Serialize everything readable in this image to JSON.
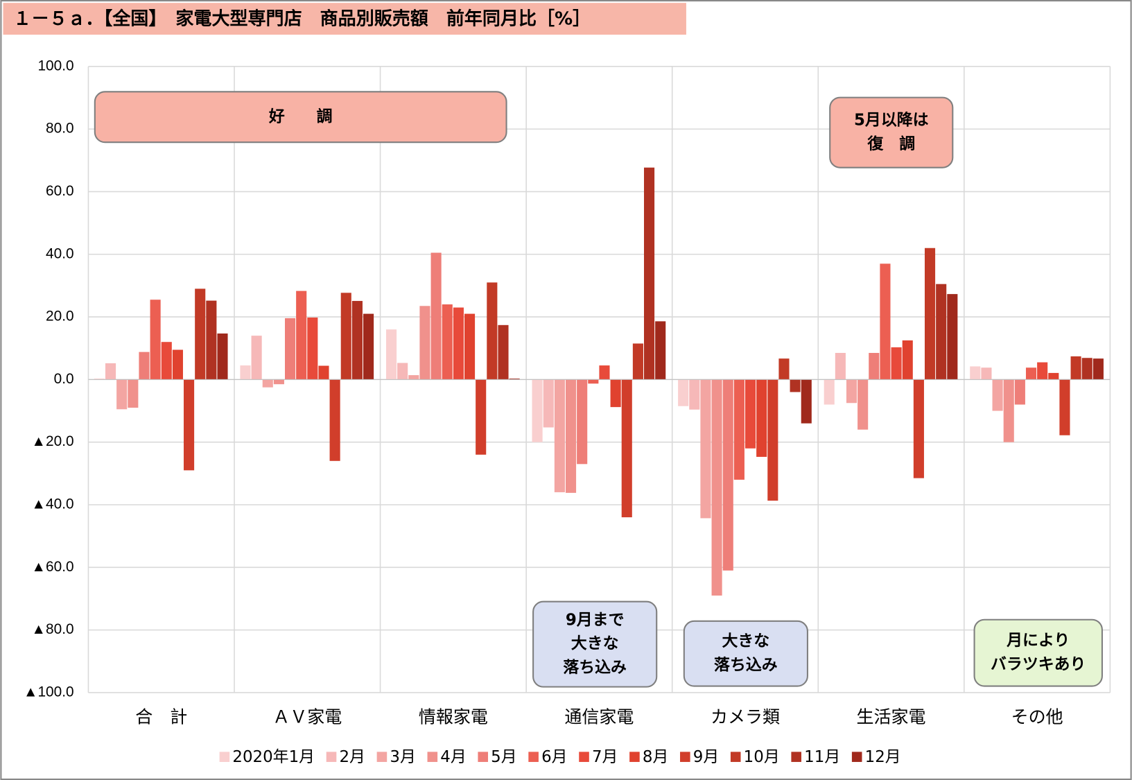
{
  "chart_data": {
    "type": "bar",
    "title": "１－５ａ．【全国】　家電大型専門店　商品別販売額　前年同月比［%］",
    "categories": [
      "合　計",
      "ＡＶ家電",
      "情報家電",
      "通信家電",
      "カメラ類",
      "生活家電",
      "その他"
    ],
    "ylim": [
      -100,
      100
    ],
    "yticks": [
      {
        "value": -100,
        "label": "▲100.0"
      },
      {
        "value": -80,
        "label": "▲80.0"
      },
      {
        "value": -60,
        "label": "▲60.0"
      },
      {
        "value": -40,
        "label": "▲40.0"
      },
      {
        "value": -20,
        "label": "▲20.0"
      },
      {
        "value": 0,
        "label": "0.0"
      },
      {
        "value": 20,
        "label": "20.0"
      },
      {
        "value": 40,
        "label": "40.0"
      },
      {
        "value": 60,
        "label": "60.0"
      },
      {
        "value": 80,
        "label": "80.0"
      },
      {
        "value": 100,
        "label": "100.0"
      }
    ],
    "grid": true,
    "legend": "bottom",
    "series": [
      {
        "name": "2020年1月",
        "color": "#f9cfcf",
        "values": [
          0.3,
          4.5,
          16,
          -20,
          -8.5,
          -8,
          4.2
        ]
      },
      {
        "name": "2月",
        "color": "#f6b8b8",
        "values": [
          5.2,
          14,
          5.3,
          -15.3,
          -9.6,
          8.5,
          3.8
        ]
      },
      {
        "name": "3月",
        "color": "#f3a5a2",
        "values": [
          -9.5,
          -2.5,
          1.4,
          -36,
          -44.3,
          -7.5,
          -10
        ]
      },
      {
        "name": "4月",
        "color": "#f0918c",
        "values": [
          -9,
          -1.5,
          23.5,
          -36.2,
          -69,
          -16,
          -20
        ]
      },
      {
        "name": "5月",
        "color": "#ee7e78",
        "values": [
          8.8,
          19.6,
          40.5,
          -27,
          -61,
          8.5,
          -8
        ]
      },
      {
        "name": "6月",
        "color": "#ec5f52",
        "values": [
          25.5,
          28.3,
          24,
          -1.3,
          -32,
          37,
          3.8
        ]
      },
      {
        "name": "7月",
        "color": "#e84a3a",
        "values": [
          12,
          19.8,
          23,
          4.5,
          -22,
          10.3,
          5.5
        ]
      },
      {
        "name": "8月",
        "color": "#e0422f",
        "values": [
          9.5,
          4.4,
          21,
          -8.8,
          -24.7,
          12.5,
          2.1
        ]
      },
      {
        "name": "9月",
        "color": "#d13e2b",
        "values": [
          -29,
          -26,
          -24,
          -44,
          -38.7,
          -31.5,
          -17.8
        ]
      },
      {
        "name": "10月",
        "color": "#c23a26",
        "values": [
          29,
          27.7,
          31,
          11.5,
          6.7,
          42,
          7.4
        ]
      },
      {
        "name": "11月",
        "color": "#b03222",
        "values": [
          25.2,
          25.1,
          17.4,
          67.7,
          -4,
          30.5,
          6.9
        ]
      },
      {
        "name": "12月",
        "color": "#a0291c",
        "values": [
          14.7,
          21,
          0.3,
          18.6,
          -14,
          27.3,
          6.7
        ]
      }
    ],
    "annotations": [
      {
        "lines": [
          "好　　調"
        ],
        "color": "#f8b2a5"
      },
      {
        "lines": [
          "5月以降は",
          "復　調"
        ],
        "color": "#f8b2a5"
      },
      {
        "lines": [
          "9月まで",
          "大きな",
          "落ち込み"
        ],
        "color": "#d9dff2"
      },
      {
        "lines": [
          "大きな",
          "落ち込み"
        ],
        "color": "#d9dff2"
      },
      {
        "lines": [
          "月により",
          "バラツキあり"
        ],
        "color": "#e6f5d3"
      }
    ]
  }
}
